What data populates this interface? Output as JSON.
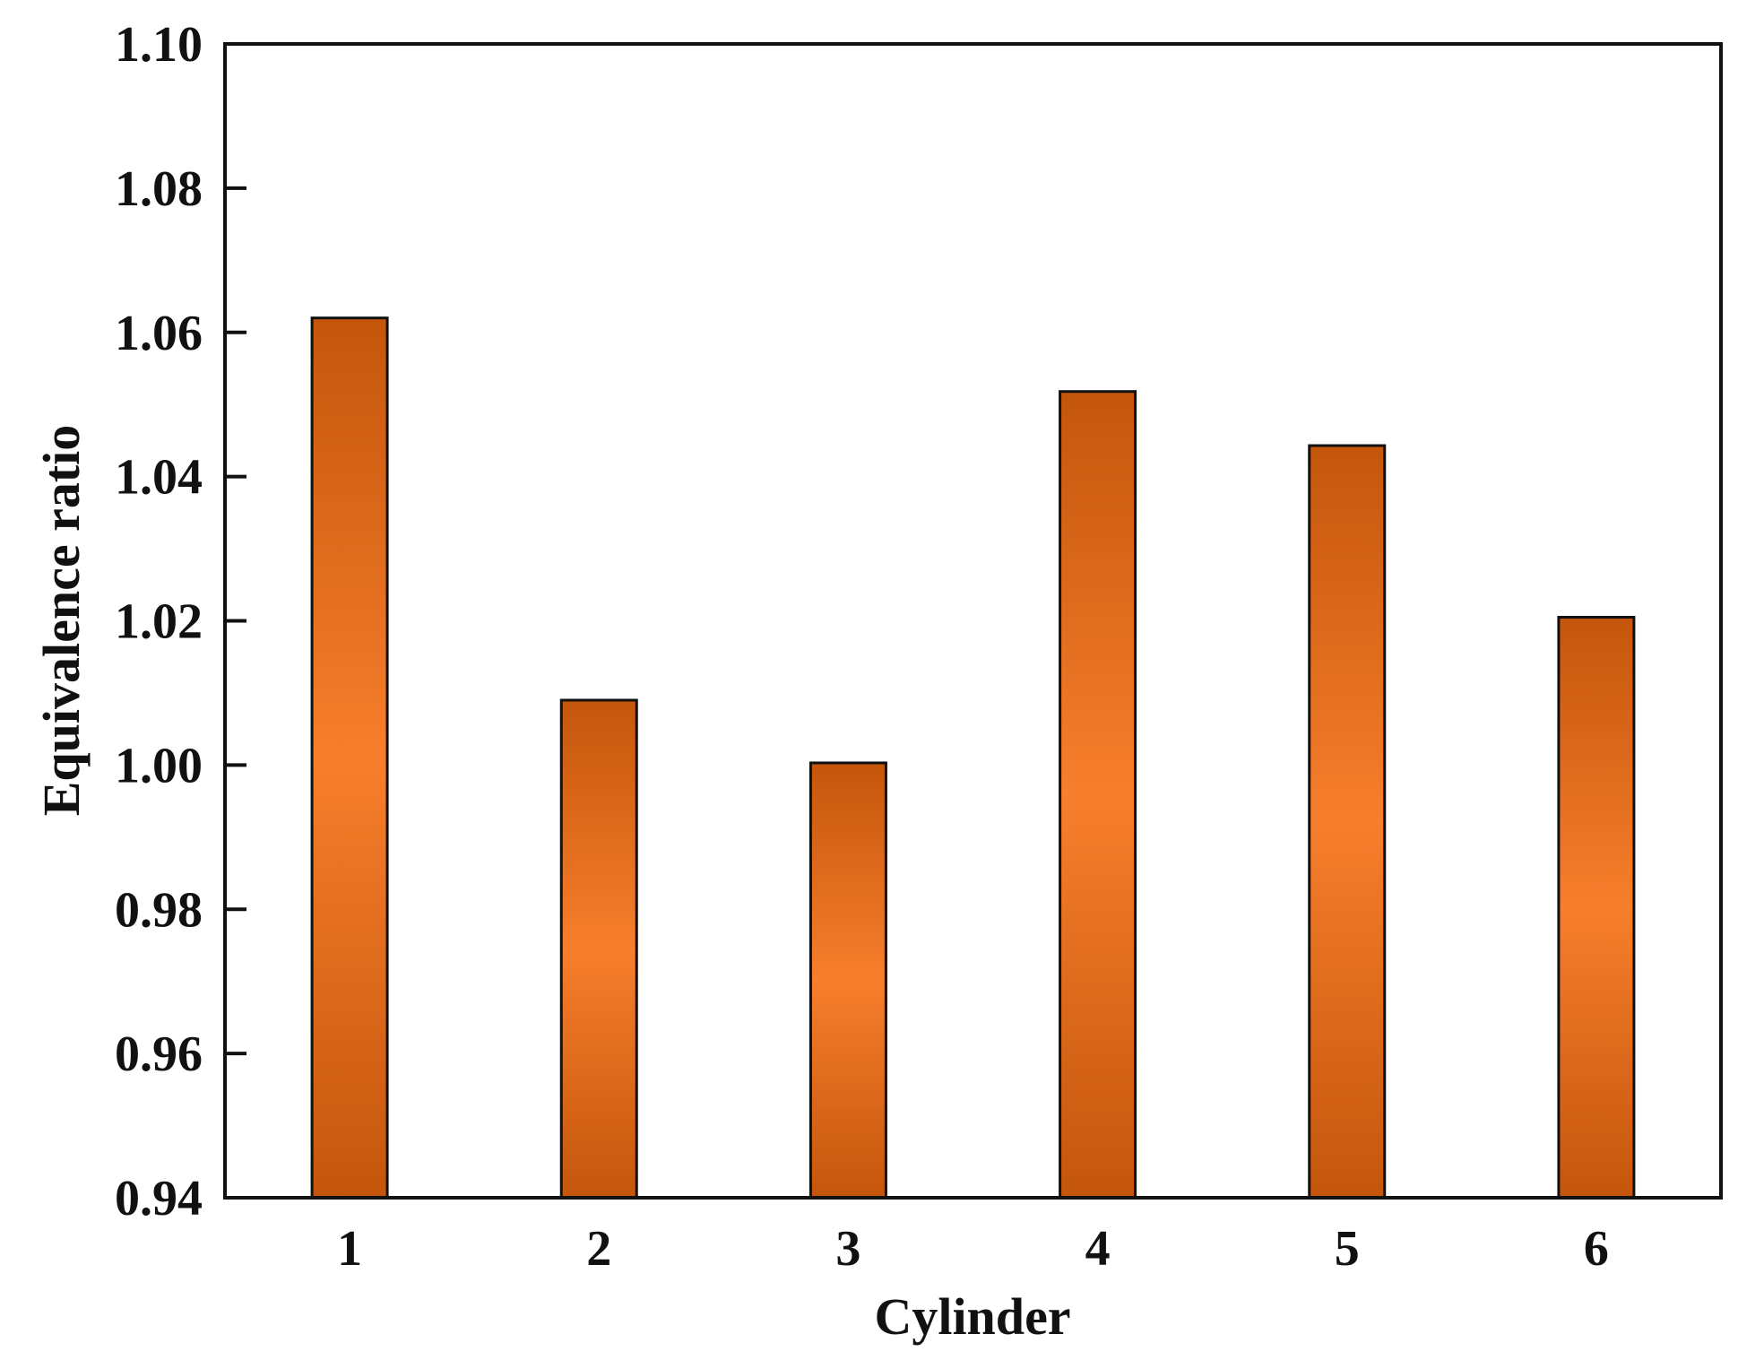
{
  "chart_data": {
    "type": "bar",
    "title": "",
    "xlabel": "Cylinder",
    "ylabel": "Equivalence ratio",
    "categories": [
      "1",
      "2",
      "3",
      "4",
      "5",
      "6"
    ],
    "values": [
      1.062,
      1.009,
      1.0003,
      1.0518,
      1.0443,
      1.0205
    ],
    "ylim": [
      0.94,
      1.1
    ],
    "yticks": [
      0.94,
      0.96,
      0.98,
      1.0,
      1.02,
      1.04,
      1.06,
      1.08,
      1.1
    ],
    "ytick_labels": [
      "0.94",
      "0.96",
      "0.98",
      "1.00",
      "1.02",
      "1.04",
      "1.06",
      "1.08",
      "1.10"
    ],
    "grid": false,
    "legend": "none",
    "bar_color_edge": "#c4560c",
    "bar_color_center": "#f77e2c",
    "bar_outline_color": "#111111"
  }
}
